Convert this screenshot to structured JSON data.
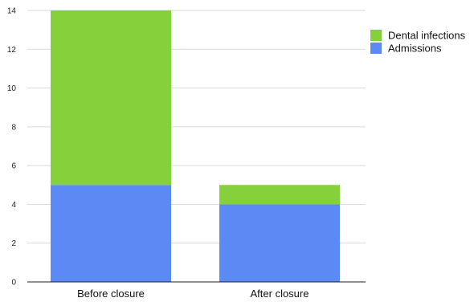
{
  "chart_data": {
    "type": "bar",
    "stacked": true,
    "categories": [
      "Before closure",
      "After closure"
    ],
    "series": [
      {
        "name": "Admissions",
        "values": [
          5,
          4
        ],
        "color": "#5b8af5"
      },
      {
        "name": "Dental infections",
        "values": [
          9,
          1
        ],
        "color": "#86d03c"
      }
    ],
    "y_ticks": [
      "0",
      "2",
      "4",
      "6",
      "8",
      "10",
      "12",
      "14"
    ],
    "ylim": [
      0,
      14
    ],
    "grid": true,
    "legend_position": "top-right",
    "legend_order": [
      "Dental infections",
      "Admissions"
    ]
  }
}
